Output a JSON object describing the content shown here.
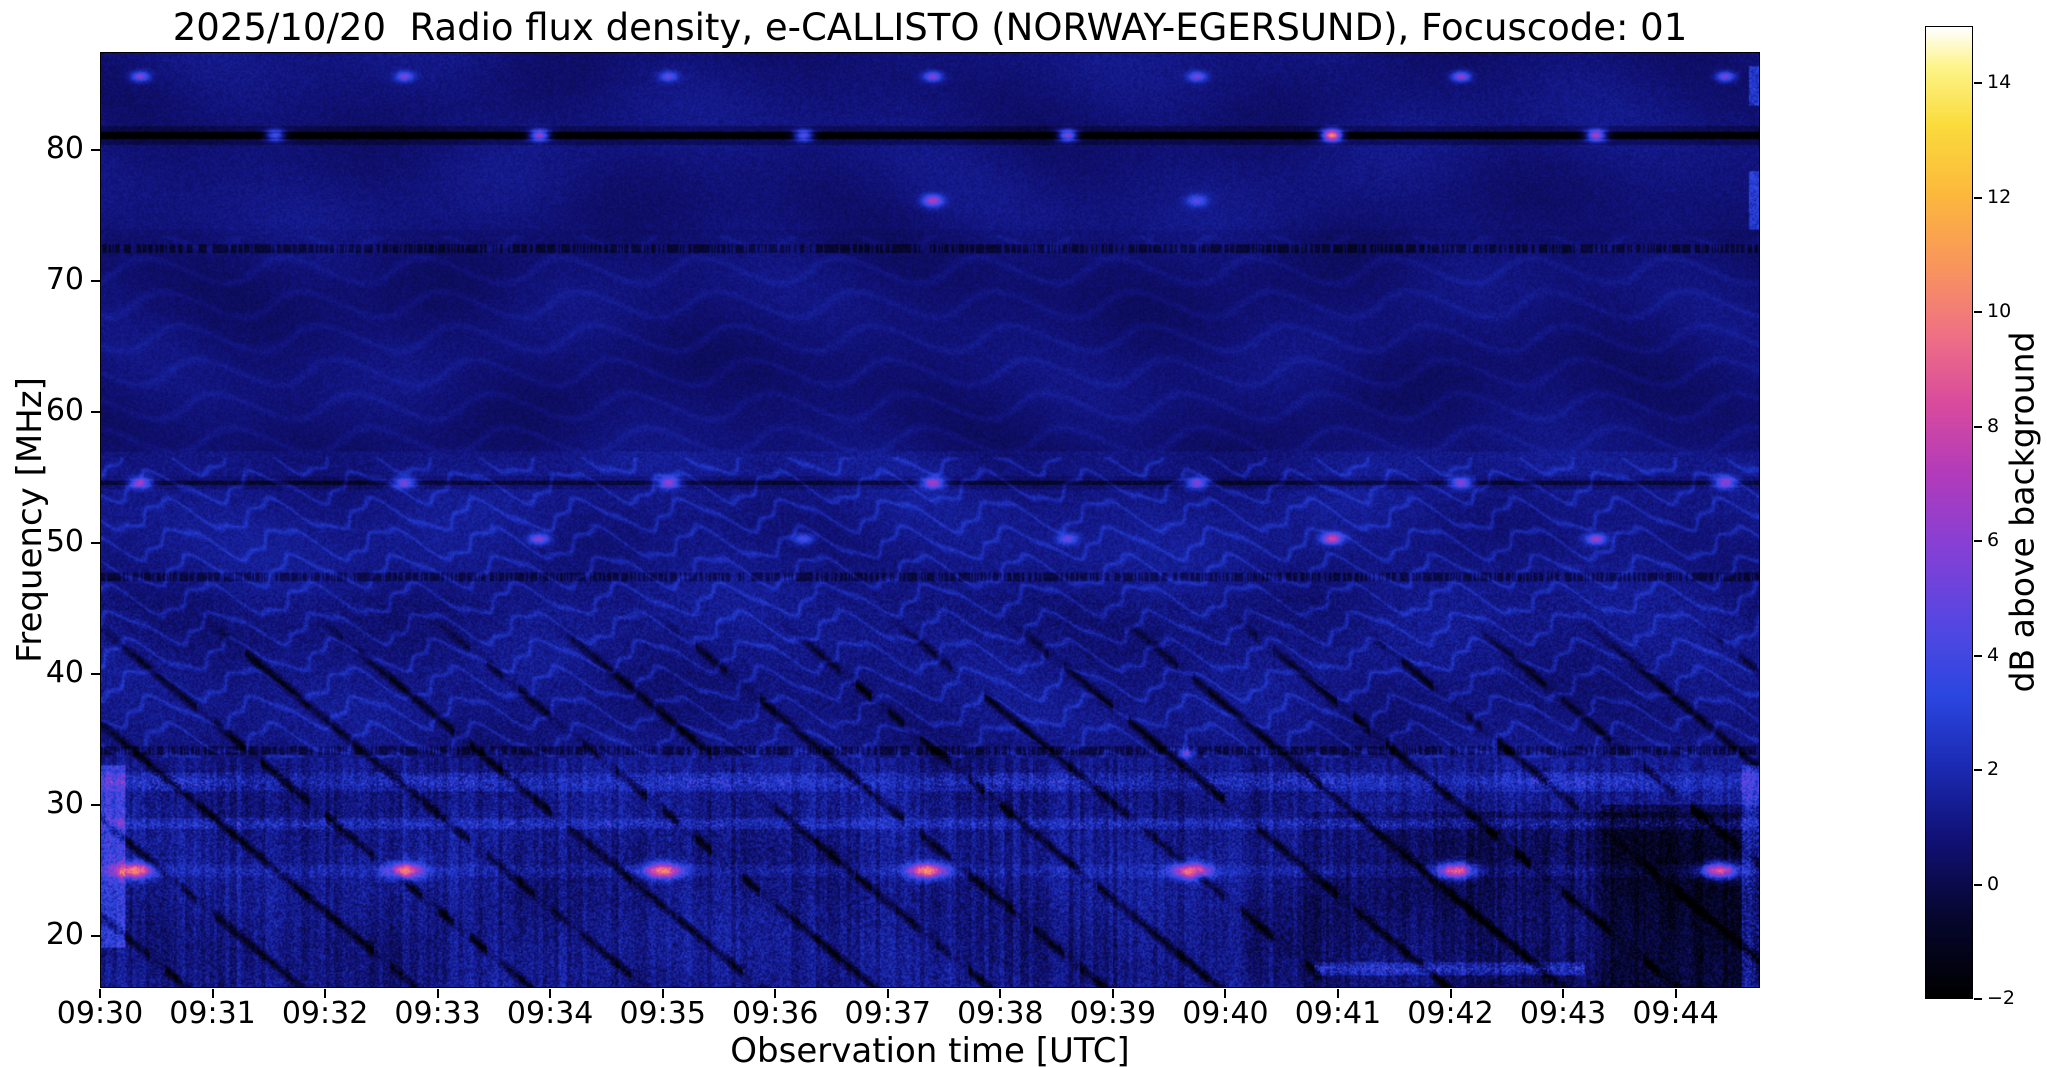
{
  "chart_data": {
    "type": "heatmap",
    "title": "2025/10/20  Radio flux density, e-CALLISTO (NORWAY-EGERSUND), Focuscode: 01",
    "xlabel": "Observation time [UTC]",
    "ylabel": "Frequency [MHz]",
    "x_ticks": [
      "09:30",
      "09:31",
      "09:32",
      "09:33",
      "09:34",
      "09:35",
      "09:36",
      "09:37",
      "09:38",
      "09:39",
      "09:40",
      "09:41",
      "09:42",
      "09:43",
      "09:44"
    ],
    "x_range_minutes": [
      0,
      14.75
    ],
    "y_ticks": [
      20,
      30,
      40,
      50,
      60,
      70,
      80
    ],
    "ylim": [
      16,
      87.5
    ],
    "grid": false,
    "colorbar": {
      "label": "dB above background",
      "vmin": -2,
      "vmax": 15,
      "ticks": [
        {
          "value": -2,
          "label": "−2"
        },
        {
          "value": 0,
          "label": "0"
        },
        {
          "value": 2,
          "label": "2"
        },
        {
          "value": 4,
          "label": "4"
        },
        {
          "value": 6,
          "label": "6"
        },
        {
          "value": 8,
          "label": "8"
        },
        {
          "value": 10,
          "label": "10"
        },
        {
          "value": 12,
          "label": "12"
        },
        {
          "value": 14,
          "label": "14"
        }
      ],
      "colormap_stops": [
        [
          0.0,
          "#000000"
        ],
        [
          0.08,
          "#06062e"
        ],
        [
          0.16,
          "#101073"
        ],
        [
          0.24,
          "#1b2bb4"
        ],
        [
          0.31,
          "#2b46e0"
        ],
        [
          0.38,
          "#5247e2"
        ],
        [
          0.46,
          "#8340d6"
        ],
        [
          0.54,
          "#b23bbb"
        ],
        [
          0.61,
          "#d84a9e"
        ],
        [
          0.68,
          "#ee6f86"
        ],
        [
          0.75,
          "#f8935f"
        ],
        [
          0.83,
          "#fcb93c"
        ],
        [
          0.9,
          "#fadc3c"
        ],
        [
          0.96,
          "#fdf48a"
        ],
        [
          1.0,
          "#ffffff"
        ]
      ]
    },
    "features": {
      "rfi_dark_lines": [
        {
          "freq": 81.2,
          "depth": 3.2,
          "halfwidth": 0.28
        },
        {
          "freq": 54.6,
          "depth": 1.6,
          "halfwidth": 0.22
        }
      ],
      "dotted_dark_rows": [
        72.5,
        47.4,
        34.1
      ],
      "burst_rows": [
        {
          "freq": 85.7,
          "sigma_t": 0.08,
          "sigma_f": 0.38,
          "times_min": [
            0.35,
            2.7,
            5.05,
            7.4,
            9.75,
            12.1,
            14.45
          ],
          "amps": [
            5,
            4.5,
            4,
            5,
            4.5,
            5.5,
            5
          ]
        },
        {
          "freq": 81.2,
          "sigma_t": 0.09,
          "sigma_f": 0.42,
          "times_min": [
            1.55,
            3.9,
            6.25,
            8.6,
            10.95,
            13.3
          ],
          "amps": [
            6.5,
            8.5,
            7,
            8.5,
            13,
            9
          ]
        },
        {
          "freq": 76.2,
          "sigma_t": 0.09,
          "sigma_f": 0.45,
          "times_min": [
            7.4,
            9.75
          ],
          "amps": [
            6,
            3.5
          ]
        },
        {
          "freq": 54.6,
          "sigma_t": 0.1,
          "sigma_f": 0.4,
          "times_min": [
            0.35,
            2.7,
            5.05,
            7.4,
            9.75,
            12.1,
            14.45
          ],
          "amps": [
            6.5,
            6,
            6.5,
            7,
            6.5,
            6.5,
            6.5
          ]
        },
        {
          "freq": 50.3,
          "sigma_t": 0.09,
          "sigma_f": 0.4,
          "times_min": [
            3.9,
            6.25,
            8.6,
            10.95,
            13.3
          ],
          "amps": [
            5,
            3.5,
            4,
            7,
            5.5
          ]
        },
        {
          "freq": 33.9,
          "sigma_t": 0.07,
          "sigma_f": 0.35,
          "times_min": [
            9.65
          ],
          "amps": [
            5
          ]
        },
        {
          "freq": 24.9,
          "sigma_t": 0.16,
          "sigma_f": 0.6,
          "times_min": [
            0.3,
            2.7,
            5.0,
            7.35,
            9.7,
            12.05,
            14.4
          ],
          "amps": [
            8.5,
            8,
            8.5,
            9,
            8.5,
            8.5,
            9
          ]
        }
      ],
      "bright_bands": [
        {
          "freq": 31.7,
          "halfwidth": 0.7,
          "base": 0.9,
          "speckle": 2.8
        },
        {
          "freq": 28.5,
          "halfwidth": 0.45,
          "base": 0.7,
          "speckle": 2.2
        },
        {
          "freq": 24.9,
          "halfwidth": 0.5,
          "base": 0.4,
          "speckle": 1.2
        },
        {
          "freq": 17.4,
          "halfwidth": 0.5,
          "base": 1.4,
          "speckle": 3.0,
          "t_start": 10.8,
          "t_end": 13.2
        }
      ],
      "diagonal_stripes": {
        "slope_mhz_per_min": -7.2,
        "spacing_min": 1.02,
        "top_freq": 43.5,
        "bottom_freq": 15.8,
        "depth": 3.0
      },
      "dark_patches": [
        {
          "t_start": 10.7,
          "t_end": 14.75,
          "f_lo": 15,
          "f_hi": 29.4,
          "depth": 0.9
        },
        {
          "t_start": 13.35,
          "t_end": 14.75,
          "f_lo": 15,
          "f_hi": 30.0,
          "depth": 1.4
        }
      ]
    }
  }
}
